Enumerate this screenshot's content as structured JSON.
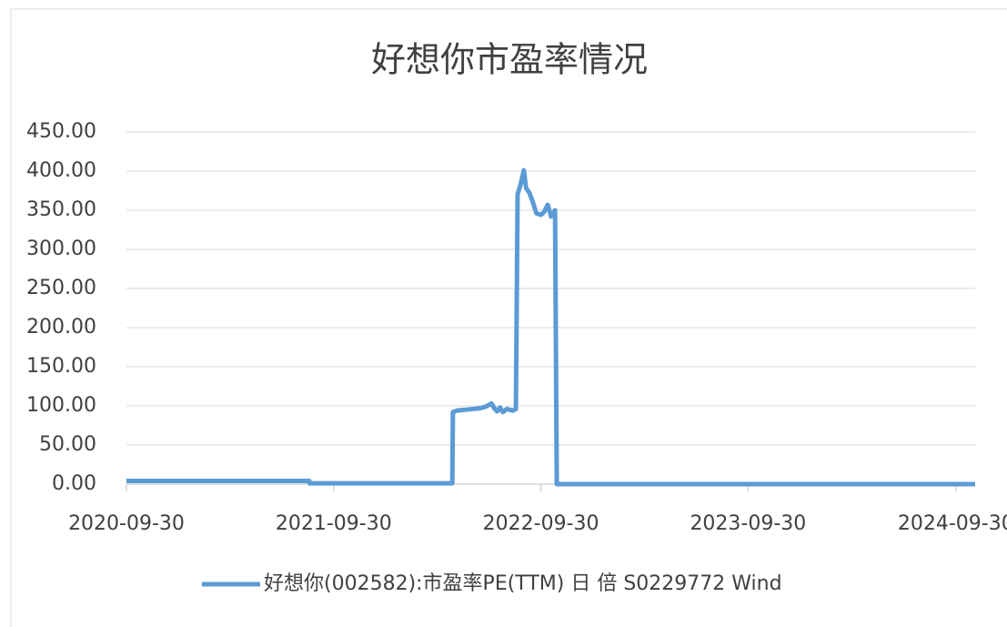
{
  "chart_data": {
    "type": "line",
    "title": "好想你市盈率情况",
    "x": [
      "2020-09-30",
      "2021-01-15",
      "2021-05-01",
      "2021-08-18",
      "2021-08-19",
      "2022-01-01",
      "2022-04-27",
      "2022-04-28",
      "2022-05-05",
      "2022-05-20",
      "2022-06-01",
      "2022-06-15",
      "2022-06-25",
      "2022-07-05",
      "2022-07-10",
      "2022-07-15",
      "2022-07-20",
      "2022-07-25",
      "2022-08-01",
      "2022-08-12",
      "2022-08-17",
      "2022-08-20",
      "2022-08-26",
      "2022-08-31",
      "2022-09-04",
      "2022-09-10",
      "2022-09-16",
      "2022-09-22",
      "2022-09-30",
      "2022-10-06",
      "2022-10-12",
      "2022-10-18",
      "2022-10-25",
      "2022-10-28",
      "2023-06-01",
      "2024-01-01",
      "2024-11-03"
    ],
    "series": [
      {
        "name": "好想你(002582):市盈率PE(TTM) 日 倍 S0229772 Wind",
        "color": "#5b9bd5",
        "values": [
          4,
          4,
          4,
          4,
          1,
          1,
          1,
          92,
          94,
          95,
          96,
          97,
          99,
          103,
          97,
          93,
          98,
          92,
          96,
          94,
          96,
          370,
          385,
          401,
          378,
          372,
          360,
          346,
          344,
          348,
          357,
          342,
          350,
          0,
          0,
          0,
          0
        ]
      }
    ],
    "xlim": [
      "2020-09-30",
      "2024-11-03"
    ],
    "xticks": [
      "2020-09-30",
      "2021-09-30",
      "2022-09-30",
      "2023-09-30",
      "2024-09-30"
    ],
    "ylim": [
      0,
      450
    ],
    "yticks": [
      {
        "value": 0,
        "label": "0.00"
      },
      {
        "value": 50,
        "label": "50.00"
      },
      {
        "value": 100,
        "label": "100.00"
      },
      {
        "value": 150,
        "label": "150.00"
      },
      {
        "value": 200,
        "label": "200.00"
      },
      {
        "value": 250,
        "label": "250.00"
      },
      {
        "value": 300,
        "label": "300.00"
      },
      {
        "value": 350,
        "label": "350.00"
      },
      {
        "value": 400,
        "label": "400.00"
      },
      {
        "value": 450,
        "label": "450.00"
      }
    ],
    "grid": true,
    "legend": "bottom"
  }
}
